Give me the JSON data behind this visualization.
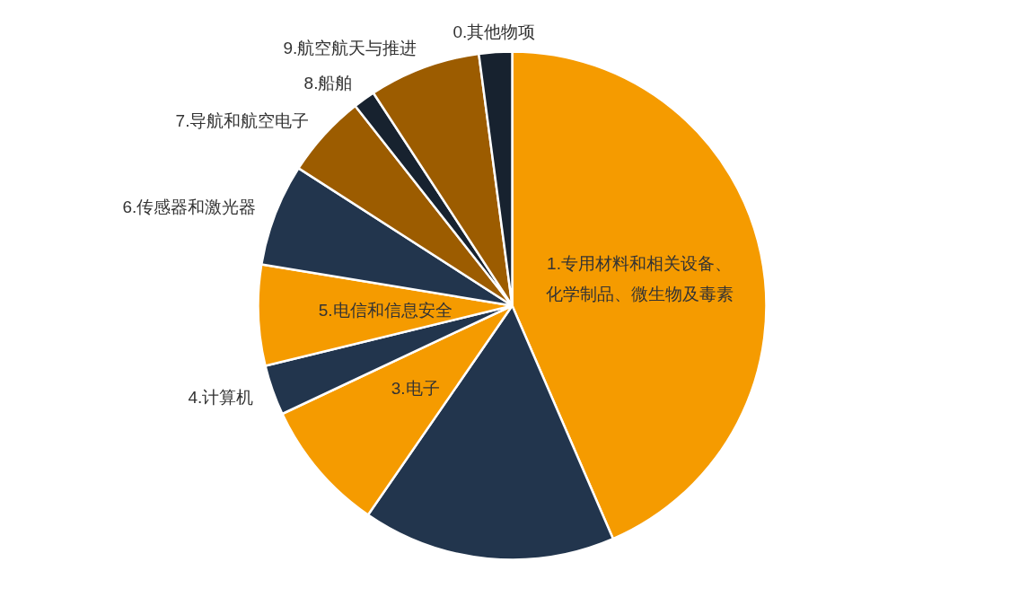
{
  "chart_data": {
    "type": "pie",
    "categories": [
      "1.专用材料和相关设备、化学制品、微生物及毒素",
      null,
      "3.电子",
      "4.计算机",
      "5.电信和信息安全",
      "6.传感器和激光器",
      "7.导航和航空电子",
      "8.船舶",
      "9.航空航天与推进",
      "0.其他物项"
    ],
    "values": [
      43.5,
      16.1,
      8.4,
      3.2,
      6.4,
      6.5,
      5.3,
      1.4,
      7.1,
      2.1
    ],
    "colors": [
      "#f59b00",
      "#22354d",
      "#f59b00",
      "#22354d",
      "#f59b00",
      "#22354d",
      "#9c5c00",
      "#17222f",
      "#9c5c00",
      "#17222f"
    ]
  }
}
